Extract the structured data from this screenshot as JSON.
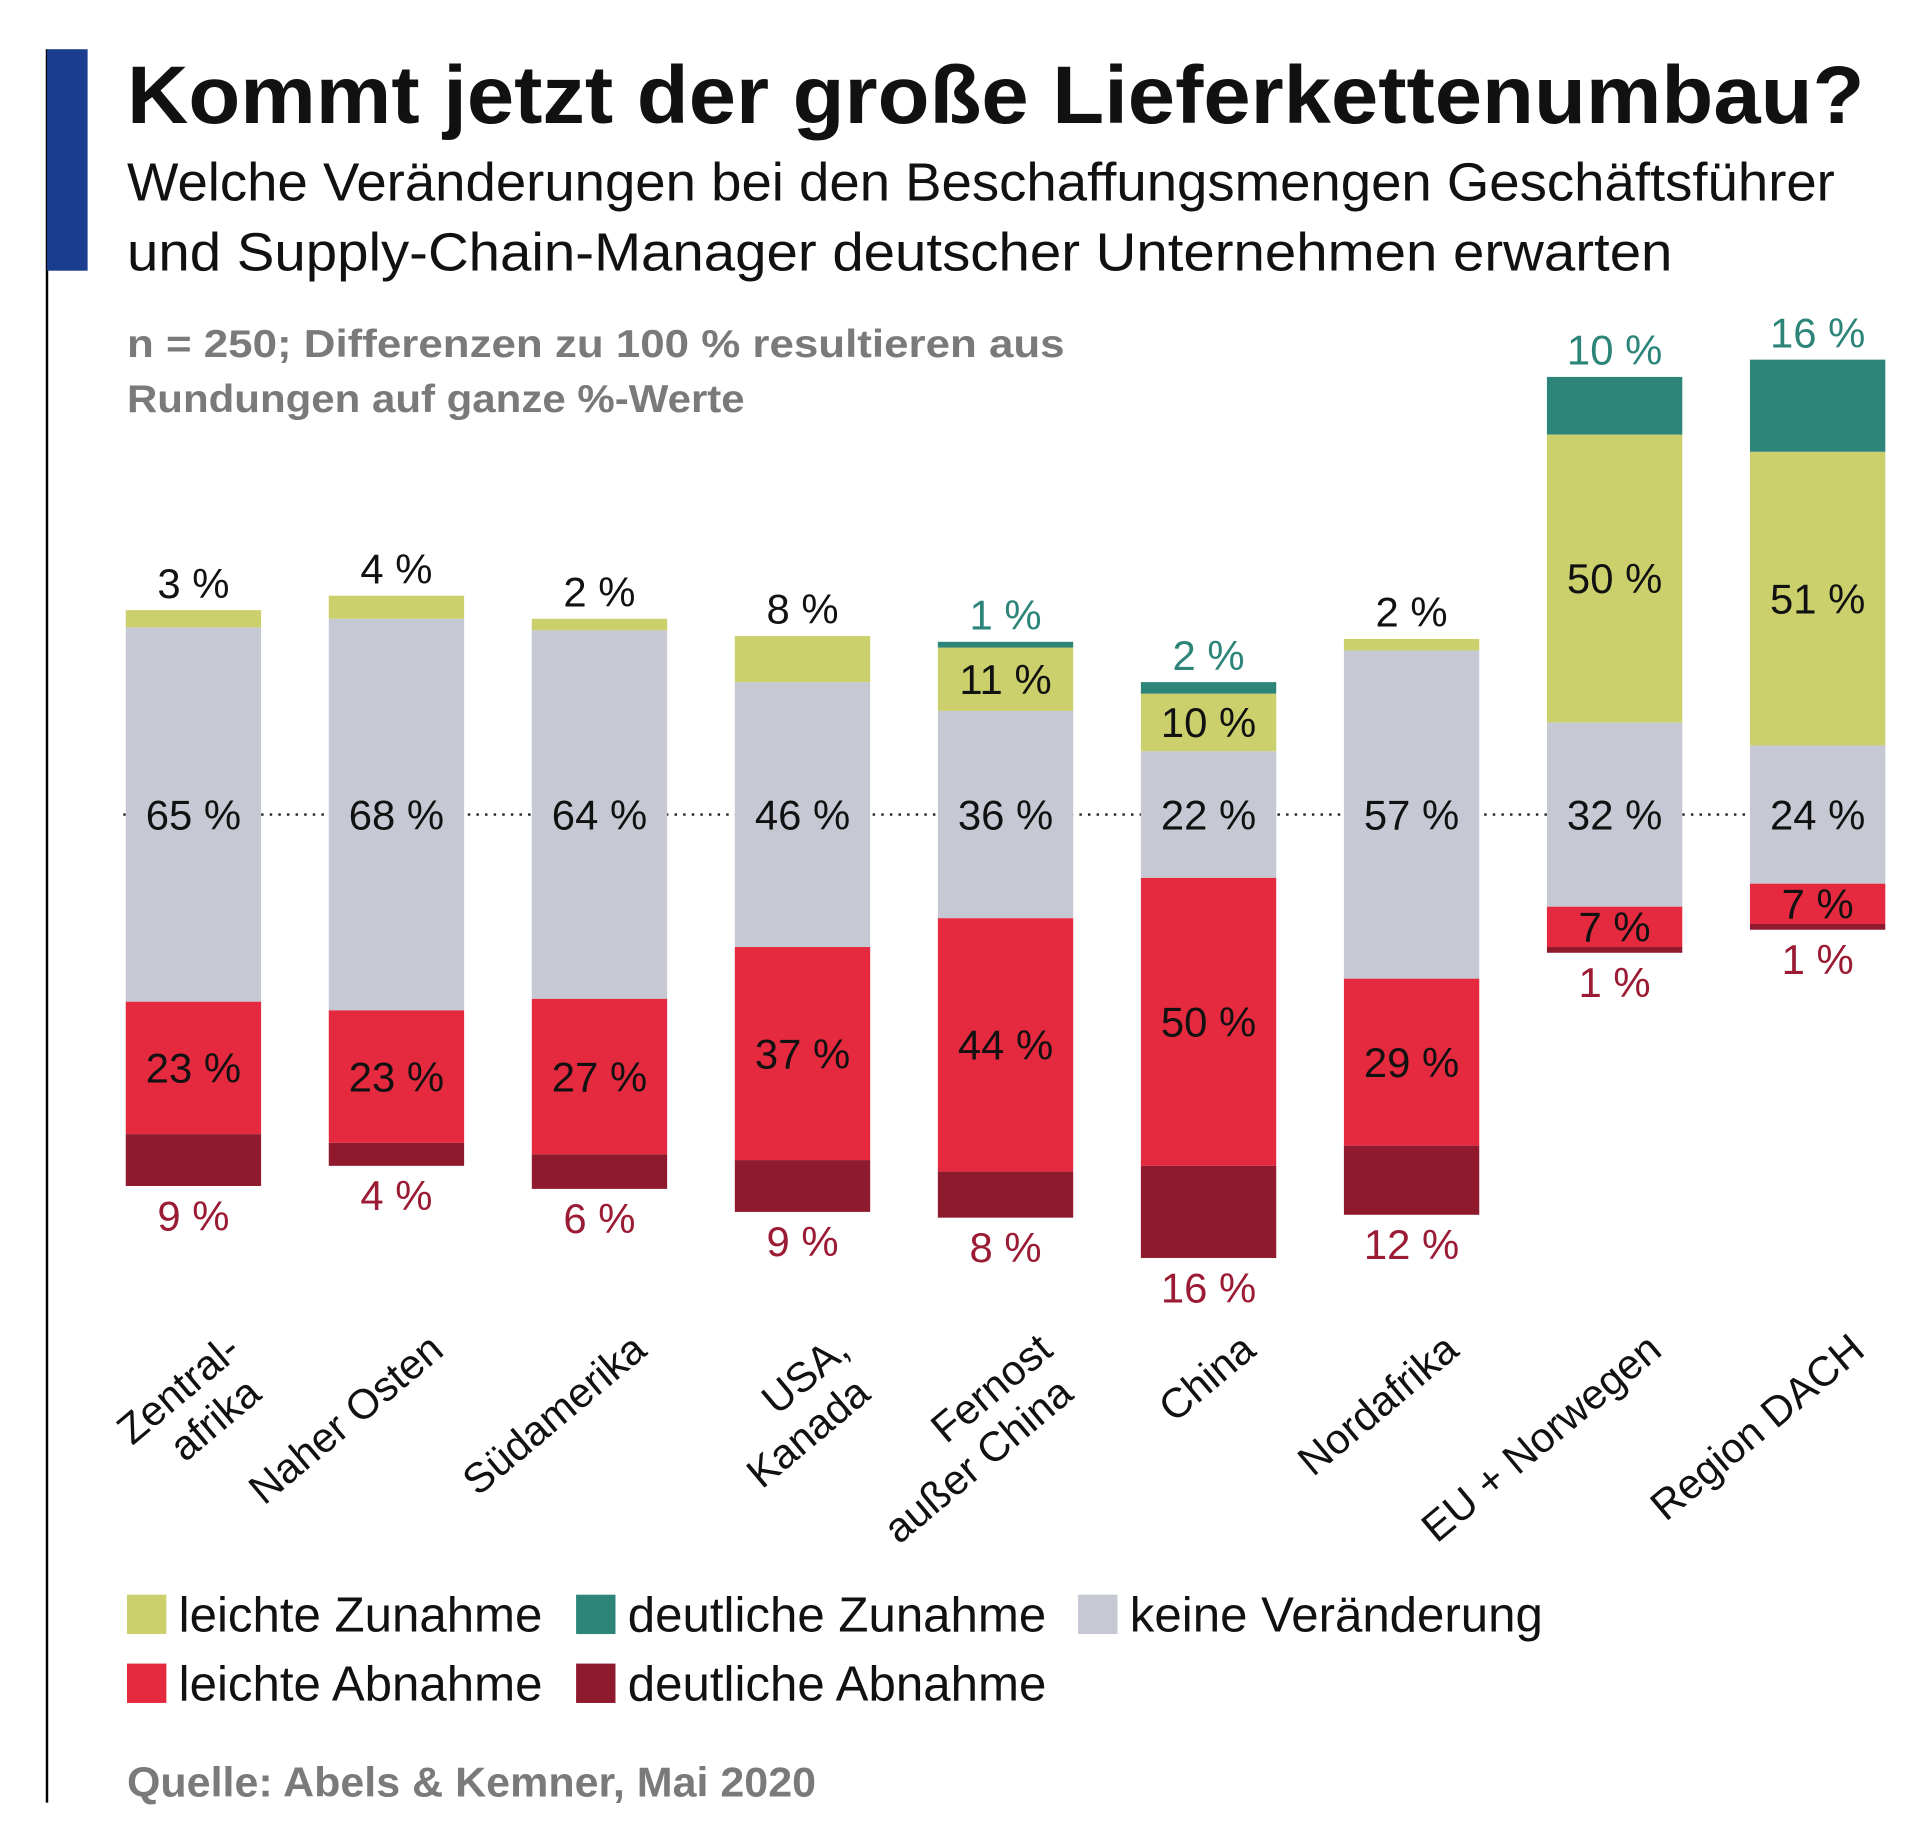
{
  "title": "Kommt jetzt der große Lieferkettenumbau?",
  "subtitle_lines": [
    "Welche Veränderungen bei den Beschaffungsmengen Geschäftsführer",
    "und Supply-Chain-Manager deutscher Unternehmen erwarten"
  ],
  "note_lines": [
    "n = 250; Differenzen zu 100 % resultieren aus",
    "Rundungen auf ganze %-Werte"
  ],
  "source": "Quelle: Abels & Kemner, Mai 2020",
  "colors": {
    "accent_bar": "#1a3d8f",
    "leichte_zunahme": "#cbd06c",
    "deutliche_zunahme": "#2d857a",
    "keine_veraenderung": "#c6c9d3",
    "leichte_abnahme": "#e52a3f",
    "deutliche_abnahme": "#8f1a2e",
    "label_teal": "#2d857a",
    "label_darkred": "#9b1b35",
    "note_grey": "#7a7a7a"
  },
  "chart_data": {
    "type": "bar",
    "stacking": "diverging, centered on 'keine Veränderung'",
    "unit": "%",
    "categories": [
      [
        "Zentral-",
        "afrika"
      ],
      [
        "Naher Osten"
      ],
      [
        "Südamerika"
      ],
      [
        "USA,",
        "Kanada"
      ],
      [
        "Fernost",
        "außer China"
      ],
      [
        "China"
      ],
      [
        "Nordafrika"
      ],
      [
        "EU + Norwegen"
      ],
      [
        "Region DACH"
      ]
    ],
    "series": [
      {
        "key": "deutliche_zunahme",
        "name": "deutliche Zunahme",
        "values": [
          0,
          0,
          0,
          0,
          1,
          2,
          0,
          10,
          16
        ]
      },
      {
        "key": "leichte_zunahme",
        "name": "leichte Zunahme",
        "values": [
          3,
          4,
          2,
          8,
          11,
          10,
          2,
          50,
          51
        ]
      },
      {
        "key": "keine_veraenderung",
        "name": "keine Veränderung",
        "values": [
          65,
          68,
          64,
          46,
          36,
          22,
          57,
          32,
          24
        ]
      },
      {
        "key": "leichte_abnahme",
        "name": "leichte Abnahme",
        "values": [
          23,
          23,
          27,
          37,
          44,
          50,
          29,
          7,
          7
        ]
      },
      {
        "key": "deutliche_abnahme",
        "name": "deutliche Abnahme",
        "values": [
          9,
          4,
          6,
          9,
          8,
          16,
          12,
          1,
          1
        ]
      }
    ],
    "legend": {
      "placement": "bottom",
      "items": [
        {
          "key": "leichte_zunahme",
          "label": "leichte Zunahme"
        },
        {
          "key": "deutliche_zunahme",
          "label": "deutliche Zunahme"
        },
        {
          "key": "keine_veraenderung",
          "label": "keine Veränderung"
        },
        {
          "key": "leichte_abnahme",
          "label": "leichte Abnahme"
        },
        {
          "key": "deutliche_abnahme",
          "label": "deutliche Abnahme"
        }
      ]
    },
    "grid": false,
    "center_line": "dotted"
  }
}
